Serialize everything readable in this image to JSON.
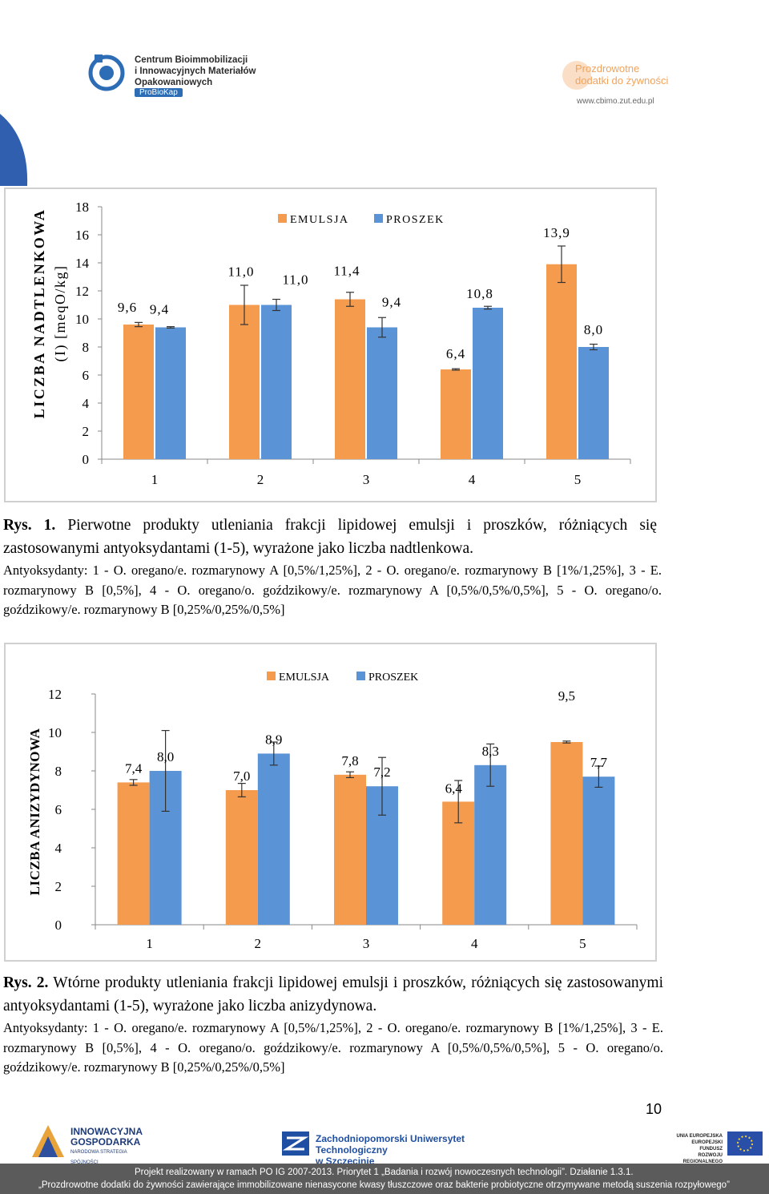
{
  "header": {
    "logo_left_lines": [
      "Centrum Bioimmobilizacji",
      "i Innowacyjnych Materiałów",
      "Opakowaniowych"
    ],
    "logo_left_badge": "ProBioKap",
    "logo_right_lines": [
      "Prozdrowotne",
      "dodatki do żywności"
    ],
    "url": "www.cbimo.zut.edu.pl"
  },
  "chart_data": [
    {
      "type": "bar",
      "ylabel": "LICZBA NADTLENKOWA (I) [meqO/kg]",
      "ylabel_lines": [
        "LICZBA NADTLENKOWA",
        "(I) [meqO/kg]"
      ],
      "ylim": [
        0,
        18
      ],
      "yticks": [
        "0",
        "2",
        "4",
        "6",
        "8",
        "10",
        "12",
        "14",
        "16",
        "18"
      ],
      "categories": [
        "1",
        "2",
        "3",
        "4",
        "5"
      ],
      "legend": [
        "EMULSJA",
        "PROSZEK"
      ],
      "series": [
        {
          "name": "EMULSJA",
          "color": "#f59b4e",
          "values": [
            9.6,
            11.0,
            11.4,
            6.4,
            13.9
          ],
          "errors": [
            0.15,
            1.4,
            0.5,
            0.05,
            1.3
          ],
          "labels": [
            "9,6",
            "11,0",
            "11,4",
            "6,4",
            "13,9"
          ]
        },
        {
          "name": "PROSZEK",
          "color": "#5a93d6",
          "values": [
            9.4,
            11.0,
            9.4,
            10.8,
            8.0
          ],
          "errors": [
            0.05,
            0.4,
            0.7,
            0.1,
            0.2
          ],
          "labels": [
            "9,4",
            "11,0",
            "9,4",
            "10,8",
            "8,0"
          ]
        }
      ]
    },
    {
      "type": "bar",
      "ylabel": "LICZBA ANIZYDYNOWA",
      "ylim": [
        0,
        12
      ],
      "yticks": [
        "0",
        "2",
        "4",
        "6",
        "8",
        "10",
        "12"
      ],
      "categories": [
        "1",
        "2",
        "3",
        "4",
        "5"
      ],
      "legend": [
        "EMULSJA",
        "PROSZEK"
      ],
      "series": [
        {
          "name": "EMULSJA",
          "color": "#f59b4e",
          "values": [
            7.4,
            7.0,
            7.8,
            6.4,
            9.5
          ],
          "errors": [
            0.15,
            0.35,
            0.15,
            1.1,
            0.05
          ],
          "labels": [
            "7,4",
            "7,0",
            "7,8",
            "6,4",
            "9,5"
          ]
        },
        {
          "name": "PROSZEK",
          "color": "#5a93d6",
          "values": [
            8.0,
            8.9,
            7.2,
            8.3,
            7.7
          ],
          "errors": [
            2.1,
            0.6,
            1.5,
            1.1,
            0.55
          ],
          "labels": [
            "8,0",
            "8,9",
            "7,2",
            "8,3",
            "7,7"
          ]
        }
      ]
    }
  ],
  "caption1": {
    "label": "Rys. 1.",
    "text": " Pierwotne produkty utleniania frakcji lipidowej emulsji i proszków, różniących się zastosowanymi antyoksydantami (1-5), wyrażone jako liczba nadtlenkowa.",
    "antiox": "Antyoksydanty: 1 - O. oregano/e. rozmarynowy A [0,5%/1,25%], 2 - O. oregano/e. rozmarynowy B [1%/1,25%], 3 - E. rozmarynowy B [0,5%], 4 - O. oregano/o. goździkowy/e. rozmarynowy A [0,5%/0,5%/0,5%], 5 - O. oregano/o. goździkowy/e. rozmarynowy B [0,25%/0,25%/0,5%]"
  },
  "caption2": {
    "label": "Rys. 2.",
    "text": " Wtórne produkty utleniania frakcji lipidowej emulsji i proszków, różniących się zastosowanymi antyoksydantami (1-5), wyrażone jako liczba anizydynowa.",
    "antiox": "Antyoksydanty: 1 - O. oregano/e. rozmarynowy A [0,5%/1,25%], 2 - O. oregano/e. rozmarynowy B [1%/1,25%], 3 - E. rozmarynowy B [0,5%], 4 - O. oregano/o. goździkowy/e. rozmarynowy A [0,5%/0,5%/0,5%], 5 - O. oregano/o. goździkowy/e. rozmarynowy B [0,25%/0,25%/0,5%]"
  },
  "page_number": "10",
  "footer": {
    "logo1_lines": [
      "INNOWACYJNA",
      "GOSPODARKA",
      "NARODOWA STRATEGIA SPÓJNOŚCI"
    ],
    "logo2_lines": [
      "Zachodniopomorski Uniwersytet Technologiczny",
      "w Szczecinie"
    ],
    "logo3_lines": [
      "UNIA EUROPEJSKA",
      "EUROPEJSKI FUNDUSZ",
      "ROZWOJU REGIONALNEGO"
    ],
    "line1": "Projekt realizowany w ramach PO IG 2007-2013. Priorytet 1 „Badania i rozwój nowoczesnych technologii”. Działanie 1.3.1.",
    "line2": "„Prozdrowotne dodatki do żywności zawierające immobilizowane nienasycone kwasy tłuszczowe oraz bakterie probiotyczne otrzymywane metodą suszenia rozpyłowego”"
  }
}
